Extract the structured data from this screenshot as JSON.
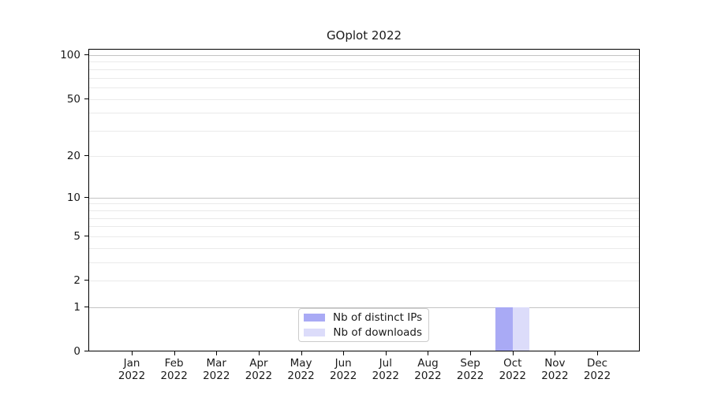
{
  "chart_data": {
    "type": "bar",
    "title": "GOplot 2022",
    "x_months": [
      "Jan",
      "Feb",
      "Mar",
      "Apr",
      "May",
      "Jun",
      "Jul",
      "Aug",
      "Sep",
      "Oct",
      "Nov",
      "Dec"
    ],
    "x_year": "2022",
    "categories": [
      "Jan 2022",
      "Feb 2022",
      "Mar 2022",
      "Apr 2022",
      "May 2022",
      "Jun 2022",
      "Jul 2022",
      "Aug 2022",
      "Sep 2022",
      "Oct 2022",
      "Nov 2022",
      "Dec 2022"
    ],
    "series": [
      {
        "name": "Nb of distinct IPs",
        "color": "#a9aaf5",
        "values": [
          0,
          0,
          0,
          0,
          0,
          0,
          0,
          0,
          0,
          1,
          0,
          0
        ]
      },
      {
        "name": "Nb of downloads",
        "color": "#dcdcfa",
        "values": [
          0,
          0,
          0,
          0,
          0,
          0,
          0,
          0,
          0,
          1,
          0,
          0
        ]
      }
    ],
    "y_tick_labels": [
      100,
      50,
      20,
      10,
      5,
      2,
      1,
      0
    ],
    "y_gridlines_major": [
      1,
      10,
      100
    ],
    "y_gridlines_minor": [
      2,
      3,
      4,
      5,
      6,
      7,
      8,
      9,
      20,
      30,
      40,
      50,
      60,
      70,
      80,
      90
    ],
    "y_scale": "log10(1+y)",
    "ylim": [
      0,
      105
    ],
    "grid": "horizontal",
    "legend_position": "lower center",
    "colors": {
      "bar_distinct_ips": "#a9aaf5",
      "bar_downloads": "#dcdcfa",
      "major_grid": "#c4c4c4",
      "minor_grid": "#eaeaea",
      "spine": "#000000",
      "text": "#1a1a1a",
      "legend_border": "#cccccc"
    }
  }
}
